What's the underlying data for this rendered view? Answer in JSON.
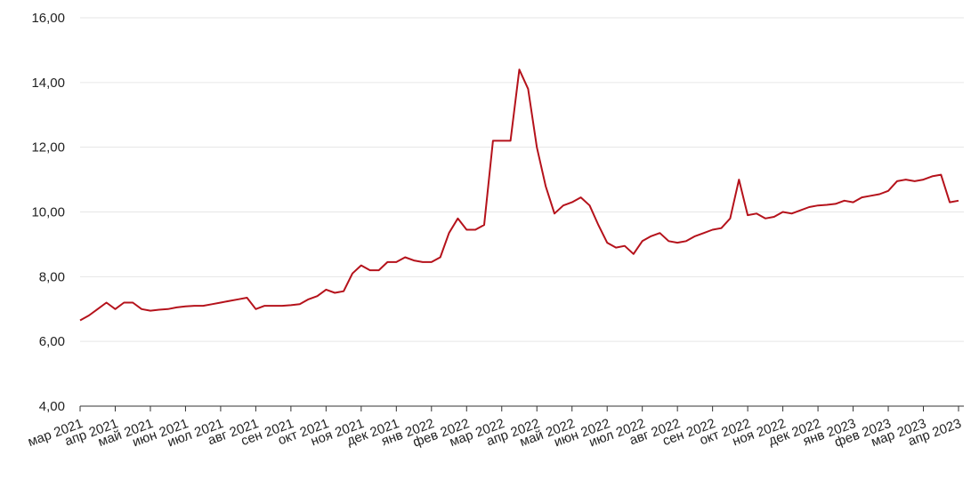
{
  "chart_data": {
    "type": "line",
    "categories": [
      "мар 2021",
      null,
      null,
      null,
      "апр 2021",
      null,
      null,
      null,
      "май 2021",
      null,
      null,
      null,
      "июн 2021",
      null,
      null,
      null,
      "июл 2021",
      null,
      null,
      null,
      "авг 2021",
      null,
      null,
      null,
      "сен 2021",
      null,
      null,
      null,
      "окт 2021",
      null,
      null,
      null,
      "ноя 2021",
      null,
      null,
      null,
      "дек 2021",
      null,
      null,
      null,
      "янв 2022",
      null,
      null,
      null,
      "фев 2022",
      null,
      null,
      null,
      "мар 2022",
      null,
      null,
      null,
      "апр 2022",
      null,
      null,
      null,
      "май 2022",
      null,
      null,
      null,
      "июн 2022",
      null,
      null,
      null,
      "июл 2022",
      null,
      null,
      null,
      "авг 2022",
      null,
      null,
      null,
      "сен 2022",
      null,
      null,
      null,
      "окт 2022",
      null,
      null,
      null,
      "ноя 2022",
      null,
      null,
      null,
      "дек 2022",
      null,
      null,
      null,
      "янв 2023",
      null,
      null,
      null,
      "фев 2023",
      null,
      null,
      null,
      "мар 2023",
      null,
      null,
      null,
      "апр 2023"
    ],
    "series": [
      {
        "color": "#b5121b",
        "values": [
          6.65,
          6.8,
          7.0,
          7.2,
          7.0,
          7.2,
          7.2,
          7.0,
          6.95,
          6.98,
          7.0,
          7.05,
          7.08,
          7.1,
          7.1,
          7.15,
          7.2,
          7.25,
          7.3,
          7.35,
          7.0,
          7.1,
          7.1,
          7.1,
          7.12,
          7.15,
          7.3,
          7.4,
          7.6,
          7.5,
          7.55,
          8.1,
          8.35,
          8.2,
          8.2,
          8.45,
          8.45,
          8.6,
          8.5,
          8.45,
          8.45,
          8.6,
          9.35,
          9.8,
          9.45,
          9.45,
          9.6,
          12.2,
          12.2,
          12.2,
          14.4,
          13.8,
          12.0,
          10.8,
          9.95,
          10.2,
          10.3,
          10.45,
          10.2,
          9.6,
          9.05,
          8.9,
          8.95,
          8.7,
          9.1,
          9.25,
          9.35,
          9.1,
          9.05,
          9.1,
          9.25,
          9.35,
          9.45,
          9.5,
          9.8,
          11.0,
          9.9,
          9.95,
          9.8,
          9.85,
          10.0,
          9.95,
          10.05,
          10.15,
          10.2,
          10.22,
          10.25,
          10.35,
          10.3,
          10.45,
          10.5,
          10.55,
          10.65,
          10.95,
          11.0,
          10.95,
          11.0,
          11.1,
          11.15,
          10.3,
          10.35
        ]
      }
    ],
    "ylim": [
      4,
      16
    ],
    "yticks": [
      {
        "value": 4,
        "label": "4,00"
      },
      {
        "value": 6,
        "label": "6,00"
      },
      {
        "value": 8,
        "label": "8,00"
      },
      {
        "value": 10,
        "label": "10,00"
      },
      {
        "value": 12,
        "label": "12,00"
      },
      {
        "value": 14,
        "label": "14,00"
      },
      {
        "value": 16,
        "label": "16,00"
      }
    ],
    "grid": true
  }
}
